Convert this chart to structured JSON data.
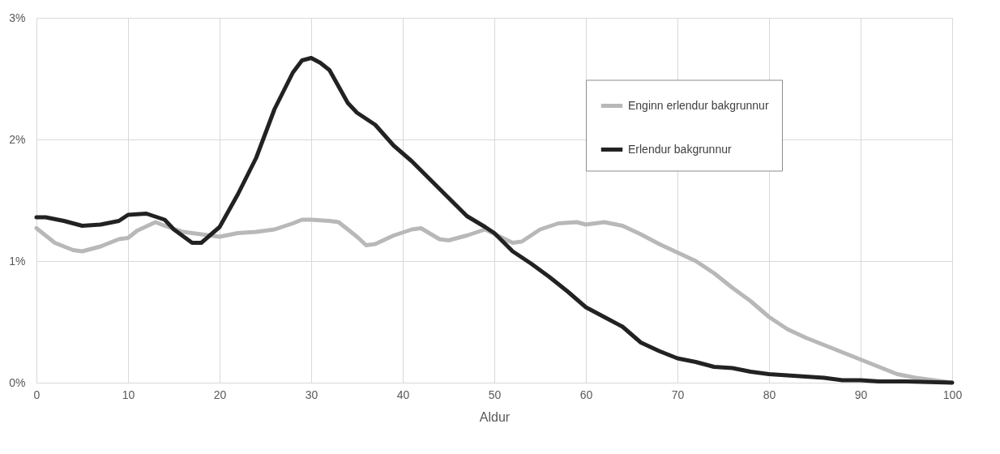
{
  "chart_data": {
    "type": "line",
    "xlabel": "Aldur",
    "xlim": [
      0,
      100
    ],
    "xticks": [
      0,
      10,
      20,
      30,
      40,
      50,
      60,
      70,
      80,
      90,
      100
    ],
    "ylim": [
      0,
      3
    ],
    "yticks": [
      {
        "value": 0,
        "label": "0%"
      },
      {
        "value": 1,
        "label": "1%"
      },
      {
        "value": 2,
        "label": "2%"
      },
      {
        "value": 3,
        "label": "3%"
      }
    ],
    "grid": true,
    "legend": "top right",
    "marker": "none",
    "line_style": "solid",
    "series": [
      {
        "name": "Enginn erlendur bakgrunnur",
        "color": "#b8b8b8",
        "x": [
          0,
          2,
          4,
          5,
          7,
          9,
          10,
          11,
          13,
          14,
          16,
          18,
          20,
          22,
          24,
          26,
          28,
          29,
          30,
          32,
          33,
          35,
          36,
          37,
          39,
          41,
          42,
          44,
          45,
          47,
          49,
          52,
          53,
          55,
          57,
          59,
          60,
          62,
          64,
          66,
          68,
          70,
          72,
          74,
          76,
          78,
          80,
          82,
          84,
          86,
          88,
          90,
          92,
          94,
          96,
          98,
          100
        ],
        "values": [
          1.27,
          1.15,
          1.09,
          1.08,
          1.12,
          1.18,
          1.19,
          1.25,
          1.32,
          1.29,
          1.24,
          1.22,
          1.2,
          1.23,
          1.24,
          1.26,
          1.31,
          1.34,
          1.34,
          1.33,
          1.32,
          1.2,
          1.13,
          1.14,
          1.21,
          1.26,
          1.27,
          1.18,
          1.17,
          1.21,
          1.26,
          1.15,
          1.16,
          1.26,
          1.31,
          1.32,
          1.3,
          1.32,
          1.29,
          1.22,
          1.14,
          1.07,
          1.0,
          0.9,
          0.78,
          0.67,
          0.54,
          0.44,
          0.37,
          0.31,
          0.25,
          0.19,
          0.13,
          0.07,
          0.04,
          0.02,
          0.0
        ]
      },
      {
        "name": "Erlendur bakgrunnur",
        "color": "#222222",
        "x": [
          0,
          1,
          3,
          5,
          7,
          9,
          10,
          12,
          14,
          15,
          17,
          18,
          20,
          22,
          24,
          26,
          28,
          29,
          30,
          31,
          32,
          34,
          35,
          37,
          39,
          41,
          43,
          45,
          47,
          49,
          50,
          52,
          54,
          56,
          58,
          60,
          62,
          64,
          66,
          68,
          70,
          72,
          74,
          76,
          78,
          80,
          82,
          84,
          86,
          88,
          90,
          92,
          95,
          100
        ],
        "values": [
          1.36,
          1.36,
          1.33,
          1.29,
          1.3,
          1.33,
          1.38,
          1.39,
          1.34,
          1.26,
          1.15,
          1.15,
          1.28,
          1.55,
          1.85,
          2.25,
          2.55,
          2.65,
          2.67,
          2.63,
          2.57,
          2.3,
          2.22,
          2.12,
          1.95,
          1.82,
          1.67,
          1.52,
          1.37,
          1.28,
          1.23,
          1.08,
          0.98,
          0.87,
          0.75,
          0.62,
          0.54,
          0.46,
          0.33,
          0.26,
          0.2,
          0.17,
          0.13,
          0.12,
          0.09,
          0.07,
          0.06,
          0.05,
          0.04,
          0.02,
          0.02,
          0.01,
          0.01,
          0.0
        ]
      }
    ]
  }
}
